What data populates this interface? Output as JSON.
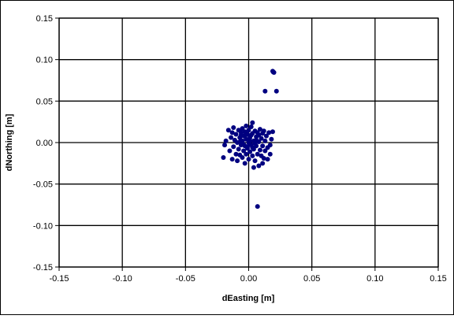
{
  "chart_data": {
    "type": "scatter",
    "title": "",
    "xlabel": "dEasting [m]",
    "ylabel": "dNorthing [m]",
    "xlim": [
      -0.15,
      0.15
    ],
    "ylim": [
      -0.15,
      0.15
    ],
    "x_ticks": [
      "-0.15",
      "-0.10",
      "-0.05",
      "0.00",
      "0.05",
      "0.10",
      "0.15"
    ],
    "y_ticks": [
      "0.15",
      "0.10",
      "0.05",
      "0.00",
      "-0.05",
      "-0.10",
      "-0.15"
    ],
    "x_tick_values": [
      -0.15,
      -0.1,
      -0.05,
      0,
      0.05,
      0.1,
      0.15
    ],
    "y_tick_values": [
      0.15,
      0.1,
      0.05,
      0,
      -0.05,
      -0.1,
      -0.15
    ],
    "grid": true,
    "legend": "none",
    "marker_color": "#000080",
    "series": [
      {
        "points": [
          [
            0.019,
            0.086
          ],
          [
            0.0195,
            0.085
          ],
          [
            0.02,
            0.0845
          ],
          [
            0.013,
            0.062
          ],
          [
            0.022,
            0.062
          ],
          [
            0.007,
            -0.077
          ],
          [
            -0.02,
            -0.018
          ],
          [
            -0.019,
            -0.003
          ],
          [
            -0.018,
            0.002
          ],
          [
            -0.015,
            -0.01
          ],
          [
            -0.014,
            0.006
          ],
          [
            -0.013,
            0.012
          ],
          [
            -0.013,
            -0.02
          ],
          [
            -0.012,
            0.018
          ],
          [
            -0.012,
            -0.005
          ],
          [
            -0.011,
            0.003
          ],
          [
            -0.01,
            -0.014
          ],
          [
            -0.01,
            0.01
          ],
          [
            -0.009,
            -0.022
          ],
          [
            -0.009,
            0.0
          ],
          [
            -0.008,
            0.015
          ],
          [
            -0.008,
            -0.008
          ],
          [
            -0.007,
            0.006
          ],
          [
            -0.007,
            -0.015
          ],
          [
            -0.006,
            0.012
          ],
          [
            -0.006,
            -0.003
          ],
          [
            -0.005,
            0.017
          ],
          [
            -0.005,
            -0.018
          ],
          [
            -0.005,
            0.002
          ],
          [
            -0.004,
            -0.01
          ],
          [
            -0.004,
            0.008
          ],
          [
            -0.003,
            -0.025
          ],
          [
            -0.003,
            0.013
          ],
          [
            -0.003,
            -0.004
          ],
          [
            -0.002,
            0.004
          ],
          [
            -0.002,
            -0.014
          ],
          [
            -0.001,
            0.01
          ],
          [
            -0.001,
            -0.007
          ],
          [
            0.0,
            0.0
          ],
          [
            0.0,
            0.015
          ],
          [
            0.0,
            -0.02
          ],
          [
            0.001,
            0.006
          ],
          [
            0.001,
            -0.011
          ],
          [
            0.002,
            0.019
          ],
          [
            0.002,
            -0.003
          ],
          [
            0.003,
            0.011
          ],
          [
            0.003,
            -0.016
          ],
          [
            0.003,
            0.024
          ],
          [
            0.004,
            0.002
          ],
          [
            0.004,
            -0.008
          ],
          [
            0.005,
            0.014
          ],
          [
            0.005,
            -0.022
          ],
          [
            0.006,
            0.007
          ],
          [
            0.006,
            -0.004
          ],
          [
            0.007,
            -0.014
          ],
          [
            0.007,
            0.012
          ],
          [
            0.008,
            0.001
          ],
          [
            0.008,
            -0.028
          ],
          [
            0.009,
            0.016
          ],
          [
            0.009,
            -0.009
          ],
          [
            0.01,
            0.005
          ],
          [
            0.01,
            -0.016
          ],
          [
            0.011,
            0.011
          ],
          [
            0.011,
            -0.004
          ],
          [
            0.012,
            -0.019
          ],
          [
            0.012,
            0.014
          ],
          [
            0.013,
            0.002
          ],
          [
            0.013,
            -0.01
          ],
          [
            0.014,
            0.008
          ],
          [
            0.015,
            -0.006
          ],
          [
            0.016,
            0.012
          ],
          [
            0.017,
            -0.014
          ],
          [
            0.017,
            -0.003
          ],
          [
            0.018,
            0.004
          ],
          [
            0.019,
            0.013
          ],
          [
            -0.016,
            0.015
          ],
          [
            0.015,
            -0.02
          ],
          [
            -0.002,
            0.02
          ],
          [
            0.004,
            -0.03
          ],
          [
            -0.007,
            0.001
          ],
          [
            0.001,
            0.002
          ],
          [
            -0.003,
            0.008
          ],
          [
            0.005,
            -0.001
          ],
          [
            0.002,
            0.009
          ],
          [
            -0.004,
            -0.002
          ],
          [
            0.006,
            0.003
          ],
          [
            -0.001,
            -0.005
          ],
          [
            0.003,
            -0.006
          ],
          [
            -0.006,
            0.009
          ],
          [
            0.008,
            0.009
          ],
          [
            0.011,
            -0.025
          ]
        ]
      }
    ]
  }
}
